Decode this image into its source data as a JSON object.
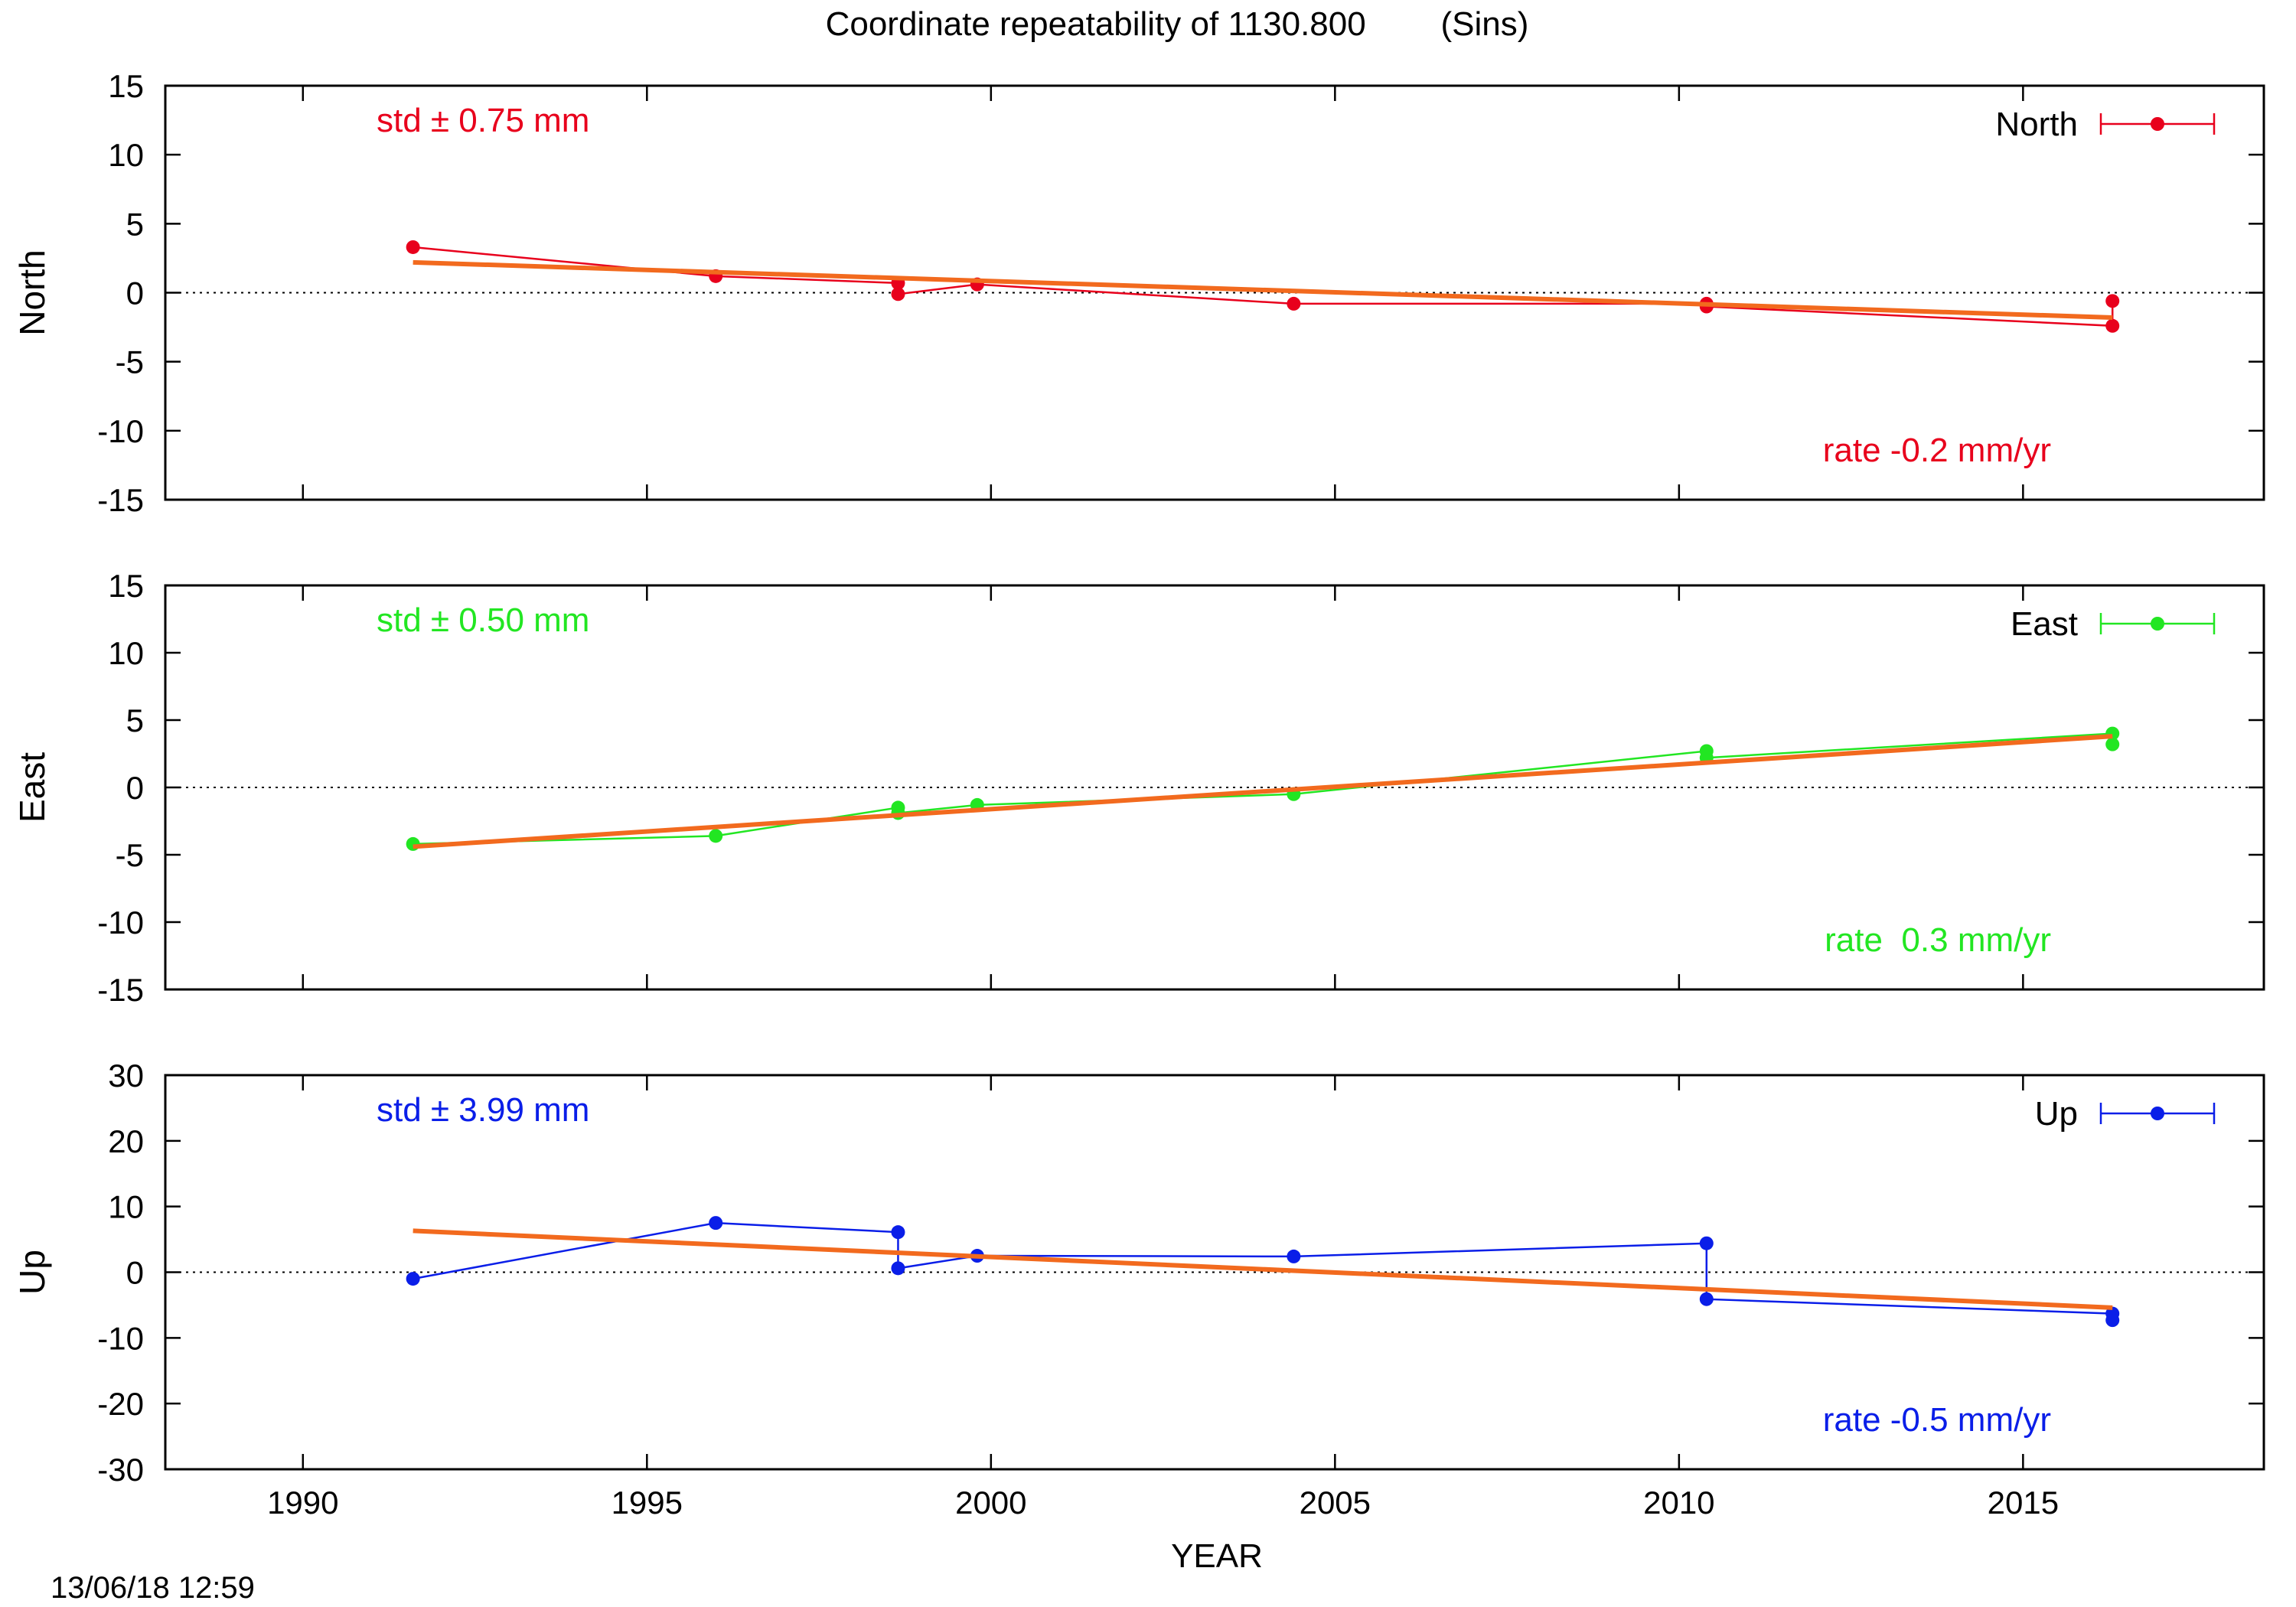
{
  "title": "Coordinate repeatability of 1130.800        (Sins)",
  "timestamp": "13/06/18 12:59",
  "chart_data": [
    {
      "type": "line",
      "component": "North",
      "ylabel": "North",
      "legend": "North",
      "legend_placement": "top-right",
      "color": "#e8001c",
      "fit_color": "#f26a1e",
      "std_text": "std ± 0.75 mm",
      "rate_text": "rate -0.2 mm/yr",
      "xlim": [
        1988,
        2018.5
      ],
      "ylim": [
        -15,
        15
      ],
      "yticks": [
        -15,
        -10,
        -5,
        0,
        5,
        10,
        15
      ],
      "zero_line": true,
      "series": [
        {
          "name": "North",
          "x": [
            1991.6,
            1996.0,
            1998.65,
            1998.65,
            1999.8,
            2004.4,
            2010.4,
            2010.4,
            2016.3,
            2016.3
          ],
          "y": [
            3.3,
            1.2,
            0.7,
            -0.1,
            0.6,
            -0.8,
            -0.8,
            -1.0,
            -2.4,
            -0.6
          ]
        }
      ],
      "fit": {
        "x": [
          1991.6,
          2016.3
        ],
        "y": [
          2.2,
          -1.8
        ]
      }
    },
    {
      "type": "line",
      "component": "East",
      "ylabel": "East",
      "legend": "East",
      "legend_placement": "top-right",
      "color": "#22e622",
      "fit_color": "#f26a1e",
      "std_text": "std ± 0.50 mm",
      "rate_text": "rate  0.3 mm/yr",
      "xlim": [
        1988,
        2018.5
      ],
      "ylim": [
        -15,
        15
      ],
      "yticks": [
        -15,
        -10,
        -5,
        0,
        5,
        10,
        15
      ],
      "zero_line": true,
      "series": [
        {
          "name": "East",
          "x": [
            1991.6,
            1996.0,
            1998.65,
            1998.65,
            1999.8,
            2004.4,
            2010.4,
            2010.4,
            2016.3,
            2016.3
          ],
          "y": [
            -4.2,
            -3.6,
            -1.5,
            -1.9,
            -1.3,
            -0.5,
            2.7,
            2.2,
            4.0,
            3.2
          ]
        }
      ],
      "fit": {
        "x": [
          1991.6,
          2016.3
        ],
        "y": [
          -4.4,
          3.8
        ]
      }
    },
    {
      "type": "line",
      "component": "Up",
      "ylabel": "Up",
      "legend": "Up",
      "legend_placement": "top-right",
      "color": "#0a1ee8",
      "fit_color": "#f26a1e",
      "std_text": "std ± 3.99 mm",
      "rate_text": "rate -0.5 mm/yr",
      "xlabel": "YEAR",
      "xlim": [
        1988,
        2018.5
      ],
      "ylim": [
        -30,
        30
      ],
      "yticks": [
        -30,
        -20,
        -10,
        0,
        10,
        20,
        30
      ],
      "xticks": [
        1990,
        1995,
        2000,
        2005,
        2010,
        2015
      ],
      "zero_line": true,
      "series": [
        {
          "name": "Up",
          "x": [
            1991.6,
            1996.0,
            1998.65,
            1998.65,
            1999.8,
            2004.4,
            2010.4,
            2010.4,
            2016.3,
            2016.3
          ],
          "y": [
            -1.0,
            7.5,
            6.1,
            0.6,
            2.5,
            2.4,
            4.4,
            -4.1,
            -6.3,
            -7.3
          ]
        }
      ],
      "fit": {
        "x": [
          1991.6,
          2016.3
        ],
        "y": [
          6.3,
          -5.4
        ]
      }
    }
  ]
}
